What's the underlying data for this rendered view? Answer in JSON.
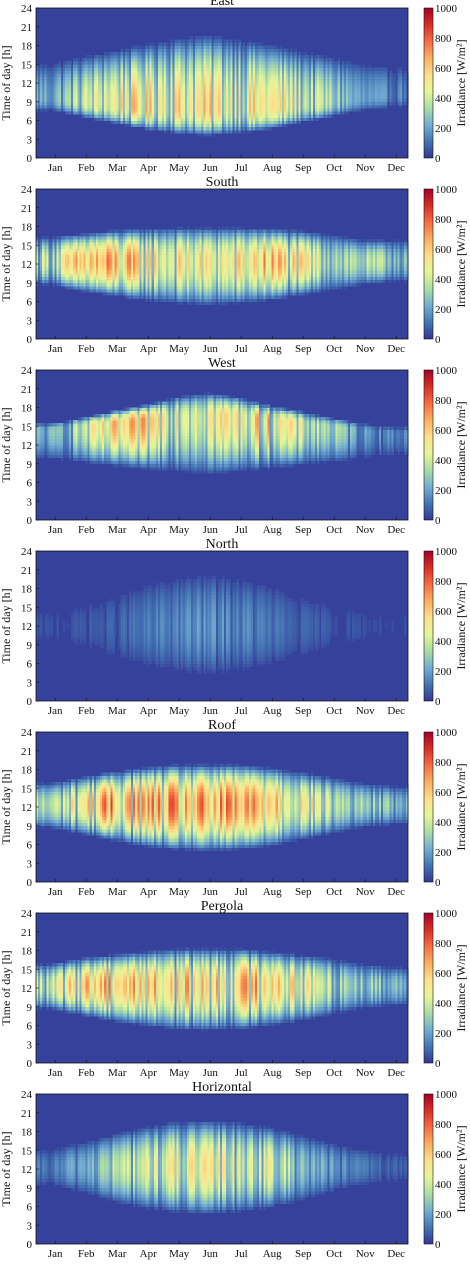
{
  "chart_data": [
    {
      "type": "heatmap",
      "title": "East",
      "xlabel": "",
      "ylabel": "Time of day [h]",
      "x_tick_labels": [
        "Jan",
        "Feb",
        "Mar",
        "Apr",
        "May",
        "Jun",
        "Jul",
        "Aug",
        "Sep",
        "Oct",
        "Nov",
        "Dec"
      ],
      "y_ticks": [
        0,
        3,
        6,
        9,
        12,
        15,
        18,
        21,
        24
      ],
      "ylim": [
        0,
        24
      ],
      "colorbar": {
        "label": "Irradiance [W/m²]",
        "ticks": [
          0,
          200,
          400,
          600,
          800,
          1000
        ],
        "range": [
          0,
          1000
        ]
      },
      "peak_hour_by_month": [
        9.5,
        9.0,
        8.5,
        8.0,
        8.0,
        8.0,
        8.0,
        8.0,
        8.5,
        9.0,
        9.5,
        10.0
      ],
      "daylight_start_by_month": [
        7.5,
        6.5,
        5.5,
        4.5,
        3.8,
        3.5,
        3.8,
        4.5,
        5.5,
        6.5,
        7.5,
        8.0
      ],
      "daylight_end_by_month": [
        15.5,
        16.5,
        17.5,
        18.5,
        19.5,
        20.0,
        19.5,
        18.5,
        17.5,
        16.5,
        15.5,
        15.0
      ],
      "peak_irradiance_by_month": [
        300,
        500,
        650,
        700,
        700,
        700,
        650,
        700,
        550,
        450,
        250,
        200
      ]
    },
    {
      "type": "heatmap",
      "title": "South",
      "xlabel": "",
      "ylabel": "Time of day [h]",
      "x_tick_labels": [
        "Jan",
        "Feb",
        "Mar",
        "Apr",
        "May",
        "Jun",
        "Jul",
        "Aug",
        "Sep",
        "Oct",
        "Nov",
        "Dec"
      ],
      "y_ticks": [
        0,
        3,
        6,
        9,
        12,
        15,
        18,
        21,
        24
      ],
      "ylim": [
        0,
        24
      ],
      "colorbar": {
        "label": "Irradiance [W/m²]",
        "ticks": [
          0,
          200,
          400,
          600,
          800,
          1000
        ],
        "range": [
          0,
          1000
        ]
      },
      "peak_hour_by_month": [
        12.5,
        12.5,
        12.5,
        12.5,
        12.5,
        12.5,
        12.5,
        12.5,
        12.5,
        12.5,
        12.5,
        12.5
      ],
      "daylight_start_by_month": [
        8.5,
        7.5,
        6.8,
        6.0,
        5.5,
        5.2,
        5.5,
        6.0,
        6.8,
        7.5,
        8.5,
        9.0
      ],
      "daylight_end_by_month": [
        16.5,
        17.0,
        17.5,
        17.8,
        18.0,
        18.0,
        18.0,
        17.8,
        17.5,
        17.0,
        16.0,
        16.0
      ],
      "peak_irradiance_by_month": [
        500,
        800,
        850,
        700,
        650,
        650,
        650,
        850,
        650,
        500,
        450,
        400
      ]
    },
    {
      "type": "heatmap",
      "title": "West",
      "xlabel": "",
      "ylabel": "Time of day [h]",
      "x_tick_labels": [
        "Jan",
        "Feb",
        "Mar",
        "Apr",
        "May",
        "Jun",
        "Jul",
        "Aug",
        "Sep",
        "Oct",
        "Nov",
        "Dec"
      ],
      "y_ticks": [
        0,
        3,
        6,
        9,
        12,
        15,
        18,
        21,
        24
      ],
      "ylim": [
        0,
        24
      ],
      "colorbar": {
        "label": "Irradiance [W/m²]",
        "ticks": [
          0,
          200,
          400,
          600,
          800,
          1000
        ],
        "range": [
          0,
          1000
        ]
      },
      "peak_hour_by_month": [
        14.5,
        15.0,
        15.5,
        16.0,
        16.5,
        16.5,
        16.5,
        16.0,
        15.5,
        15.0,
        14.5,
        14.0
      ],
      "daylight_start_by_month": [
        9.5,
        9.0,
        8.5,
        8.0,
        7.5,
        7.0,
        7.5,
        8.0,
        8.5,
        9.0,
        9.5,
        10.0
      ],
      "daylight_end_by_month": [
        15.5,
        16.5,
        17.5,
        18.5,
        19.8,
        20.5,
        19.8,
        18.5,
        17.5,
        16.5,
        15.5,
        15.0
      ],
      "peak_irradiance_by_month": [
        300,
        500,
        700,
        750,
        700,
        700,
        650,
        750,
        550,
        450,
        250,
        200
      ]
    },
    {
      "type": "heatmap",
      "title": "North",
      "xlabel": "",
      "ylabel": "Time of day [h]",
      "x_tick_labels": [
        "Jan",
        "Feb",
        "Mar",
        "Apr",
        "May",
        "Jun",
        "Jul",
        "Aug",
        "Sep",
        "Oct",
        "Nov",
        "Dec"
      ],
      "y_ticks": [
        0,
        3,
        6,
        9,
        12,
        15,
        18,
        21,
        24
      ],
      "ylim": [
        0,
        24
      ],
      "colorbar": {
        "label": "Irradiance [W/m²]",
        "ticks": [
          0,
          200,
          400,
          600,
          800,
          1000
        ],
        "range": [
          0,
          1000
        ]
      },
      "peak_hour_by_month": [
        12.0,
        12.0,
        12.0,
        12.0,
        12.0,
        12.0,
        12.0,
        12.0,
        12.0,
        12.0,
        12.0,
        12.0
      ],
      "daylight_start_by_month": [
        8.5,
        7.5,
        6.0,
        4.8,
        4.0,
        3.5,
        4.0,
        4.8,
        6.0,
        7.5,
        8.5,
        9.0
      ],
      "daylight_end_by_month": [
        15.5,
        16.5,
        17.8,
        19.5,
        20.5,
        21.0,
        20.5,
        19.5,
        17.8,
        16.5,
        15.5,
        15.0
      ],
      "peak_irradiance_by_month": [
        60,
        80,
        100,
        150,
        200,
        220,
        200,
        150,
        100,
        80,
        60,
        50
      ]
    },
    {
      "type": "heatmap",
      "title": "Roof",
      "xlabel": "",
      "ylabel": "Time of day [h]",
      "x_tick_labels": [
        "Jan",
        "Feb",
        "Mar",
        "Apr",
        "May",
        "Jun",
        "Jul",
        "Aug",
        "Sep",
        "Oct",
        "Nov",
        "Dec"
      ],
      "y_ticks": [
        0,
        3,
        6,
        9,
        12,
        15,
        18,
        21,
        24
      ],
      "ylim": [
        0,
        24
      ],
      "colorbar": {
        "label": "Irradiance [W/m²]",
        "ticks": [
          0,
          200,
          400,
          600,
          800,
          1000
        ],
        "range": [
          0,
          1000
        ]
      },
      "peak_hour_by_month": [
        12.5,
        12.5,
        12.5,
        12.5,
        12.5,
        12.5,
        12.5,
        12.5,
        12.5,
        12.5,
        12.5,
        12.5
      ],
      "daylight_start_by_month": [
        8.5,
        7.5,
        6.5,
        5.5,
        5.0,
        4.8,
        5.0,
        5.5,
        6.5,
        7.5,
        8.5,
        9.0
      ],
      "daylight_end_by_month": [
        16.0,
        17.0,
        17.8,
        18.5,
        19.0,
        19.0,
        19.0,
        18.5,
        17.8,
        17.0,
        16.0,
        15.5
      ],
      "peak_irradiance_by_month": [
        450,
        700,
        900,
        850,
        850,
        850,
        850,
        900,
        700,
        500,
        400,
        350
      ]
    },
    {
      "type": "heatmap",
      "title": "Pergola",
      "xlabel": "",
      "ylabel": "Time of day [h]",
      "x_tick_labels": [
        "Jan",
        "Feb",
        "Mar",
        "Apr",
        "May",
        "Jun",
        "Jul",
        "Aug",
        "Sep",
        "Oct",
        "Nov",
        "Dec"
      ],
      "y_ticks": [
        0,
        3,
        6,
        9,
        12,
        15,
        18,
        21,
        24
      ],
      "ylim": [
        0,
        24
      ],
      "colorbar": {
        "label": "Irradiance [W/m²]",
        "ticks": [
          0,
          200,
          400,
          600,
          800,
          1000
        ],
        "range": [
          0,
          1000
        ]
      },
      "peak_hour_by_month": [
        12.5,
        12.5,
        12.5,
        12.5,
        12.5,
        12.5,
        12.5,
        12.5,
        12.5,
        12.5,
        12.5,
        12.5
      ],
      "daylight_start_by_month": [
        8.5,
        7.5,
        6.5,
        5.8,
        5.2,
        5.0,
        5.2,
        5.8,
        6.5,
        7.5,
        8.5,
        9.0
      ],
      "daylight_end_by_month": [
        16.0,
        17.0,
        17.5,
        18.0,
        18.5,
        18.5,
        18.5,
        18.0,
        17.5,
        17.0,
        16.0,
        15.5
      ],
      "peak_irradiance_by_month": [
        500,
        800,
        900,
        800,
        750,
        750,
        750,
        900,
        650,
        500,
        400,
        350
      ]
    },
    {
      "type": "heatmap",
      "title": "Horizontal",
      "xlabel": "",
      "ylabel": "Time of day [h]",
      "x_tick_labels": [
        "Jan",
        "Feb",
        "Mar",
        "Apr",
        "May",
        "Jun",
        "Jul",
        "Aug",
        "Sep",
        "Oct",
        "Nov",
        "Dec"
      ],
      "y_ticks": [
        0,
        3,
        6,
        9,
        12,
        15,
        18,
        21,
        24
      ],
      "ylim": [
        0,
        24
      ],
      "colorbar": {
        "label": "Irradiance [W/m²]",
        "ticks": [
          0,
          200,
          400,
          600,
          800,
          1000
        ],
        "range": [
          0,
          1000
        ]
      },
      "peak_hour_by_month": [
        12.5,
        12.5,
        12.5,
        12.5,
        12.5,
        12.5,
        12.5,
        12.5,
        12.5,
        12.5,
        12.5,
        12.5
      ],
      "daylight_start_by_month": [
        9.0,
        8.0,
        6.5,
        5.5,
        4.8,
        4.5,
        4.8,
        5.5,
        6.5,
        8.0,
        9.0,
        9.5
      ],
      "daylight_end_by_month": [
        15.5,
        16.5,
        17.8,
        19.0,
        19.8,
        20.0,
        19.8,
        19.0,
        17.8,
        16.5,
        15.5,
        15.0
      ],
      "peak_irradiance_by_month": [
        150,
        300,
        450,
        550,
        600,
        600,
        600,
        550,
        400,
        250,
        150,
        100
      ]
    }
  ],
  "colors": {
    "colormap": [
      "#313695",
      "#4575b4",
      "#74add1",
      "#abdda4",
      "#e6f598",
      "#fee08b",
      "#fdae61",
      "#f46d43",
      "#d73027",
      "#a50026"
    ],
    "background_low": "#2f3e8f",
    "text": "#111111"
  }
}
